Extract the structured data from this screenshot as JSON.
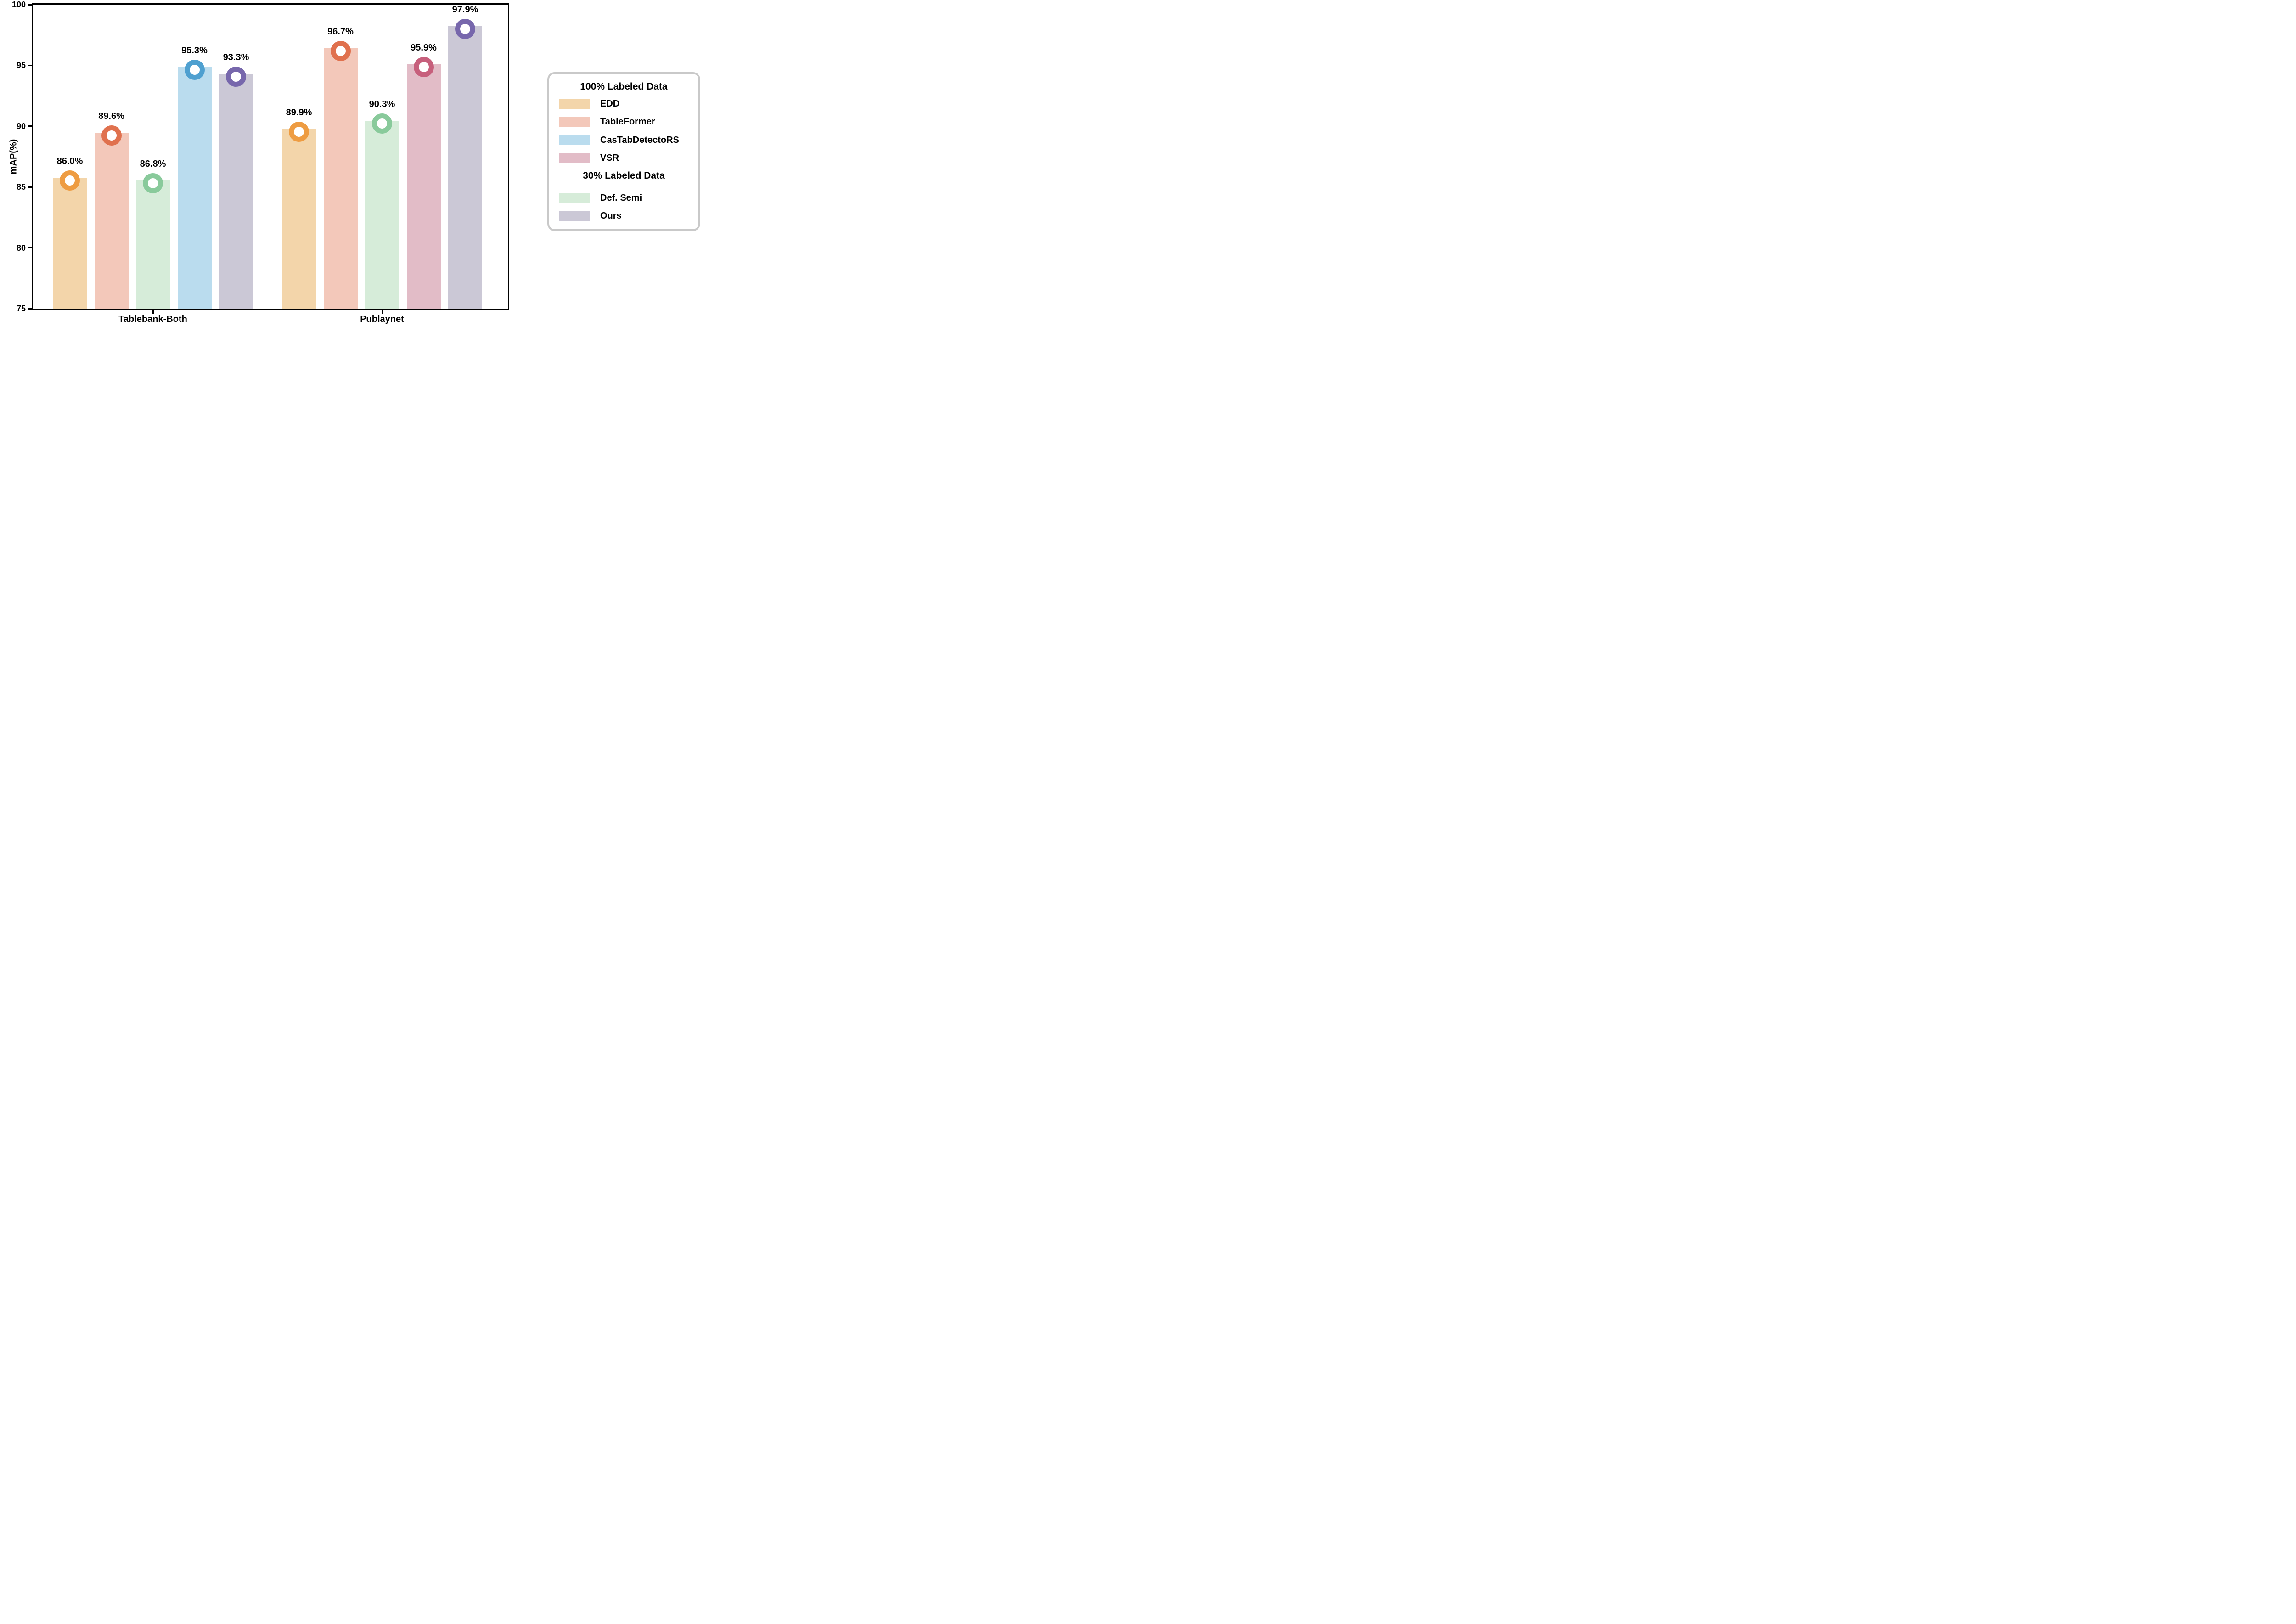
{
  "chart_data": {
    "type": "bar",
    "title": "",
    "ylabel": "mAP(%)",
    "ylim": [
      75,
      100
    ],
    "yticks": [
      75,
      80,
      85,
      90,
      95,
      100
    ],
    "grid": false,
    "legend_position": "right-outside",
    "categories": [
      "Tablebank-Both",
      "Publaynet"
    ],
    "groups": [
      {
        "label": "Tablebank-Both",
        "bars": [
          {
            "method": "EDD",
            "value": 86.0,
            "label": "86.0%",
            "bar_top": 85.78
          },
          {
            "method": "TableFormer",
            "value": 89.6,
            "label": "89.6%",
            "bar_top": 89.45
          },
          {
            "method": "Def. Semi",
            "value": 86.8,
            "label": "86.8%",
            "bar_top": 85.53
          },
          {
            "method": "CasTabDetectoRS",
            "value": 95.3,
            "label": "95.3%",
            "bar_top": 94.86
          },
          {
            "method": "Ours",
            "value": 93.3,
            "label": "93.3%",
            "bar_top": 94.3
          }
        ]
      },
      {
        "label": "Publaynet",
        "bars": [
          {
            "method": "EDD",
            "value": 89.9,
            "label": "89.9%",
            "bar_top": 89.78
          },
          {
            "method": "TableFormer",
            "value": 96.7,
            "label": "96.7%",
            "bar_top": 96.43
          },
          {
            "method": "Def. Semi",
            "value": 90.3,
            "label": "90.3%",
            "bar_top": 90.44
          },
          {
            "method": "VSR",
            "value": 95.9,
            "label": "95.9%",
            "bar_top": 95.1
          },
          {
            "method": "Ours",
            "value": 97.9,
            "label": "97.9%",
            "bar_top": 98.21
          }
        ]
      }
    ],
    "methods": {
      "EDD": {
        "fill": "#F3D5AA",
        "ring": "#EE9C42"
      },
      "TableFormer": {
        "fill": "#F3C8BA",
        "ring": "#E0714E"
      },
      "CasTabDetectoRS": {
        "fill": "#BADCEE",
        "ring": "#4FA0D0"
      },
      "VSR": {
        "fill": "#E2BCC7",
        "ring": "#C75F7C"
      },
      "Def. Semi": {
        "fill": "#D6ECD9",
        "ring": "#89CA9B"
      },
      "Ours": {
        "fill": "#CBC8D6",
        "ring": "#7767AC"
      }
    },
    "legend": {
      "sections": [
        {
          "title": "100% Labeled Data",
          "items": [
            "EDD",
            "TableFormer",
            "CasTabDetectoRS",
            "VSR"
          ]
        },
        {
          "title": "30% Labeled Data",
          "items": [
            "Def. Semi",
            "Ours"
          ]
        }
      ]
    }
  }
}
